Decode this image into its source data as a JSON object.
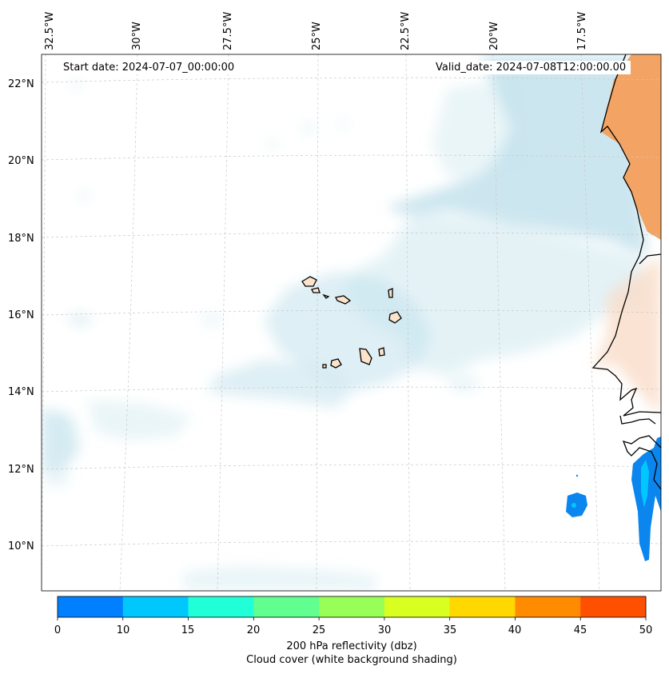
{
  "map": {
    "start_date": "Start date: 2024-07-07_00:00:00",
    "valid_date": "Valid_date: 2024-07-08T12:00:00.00",
    "lon_labels": [
      "32.5°W",
      "30°W",
      "27.5°W",
      "25°W",
      "22.5°W",
      "20°W",
      "17.5°W"
    ],
    "lat_labels": [
      "22°N",
      "20°N",
      "18°N",
      "16°N",
      "14°N",
      "12°N",
      "10°N"
    ]
  },
  "colorbar": {
    "ticks": [
      "0",
      "10",
      "15",
      "20",
      "25",
      "30",
      "35",
      "40",
      "45",
      "50"
    ],
    "colors": [
      "#0080ff",
      "#00c8ff",
      "#20ffd8",
      "#60ff90",
      "#98ff58",
      "#d8ff20",
      "#ffd800",
      "#ff8c00",
      "#ff5000"
    ],
    "label": "200 hPa reflectivity (dbz)",
    "sublabel": "Cloud cover (white background shading)"
  },
  "colors": {
    "ocean": "#ffffff",
    "cloud": "#c3e2ec",
    "land_hot": "#f3a464",
    "land_warm": "#f9dcc8",
    "island": "#fbe3cc",
    "radar": "#0a86ee",
    "coast": "#000000"
  }
}
